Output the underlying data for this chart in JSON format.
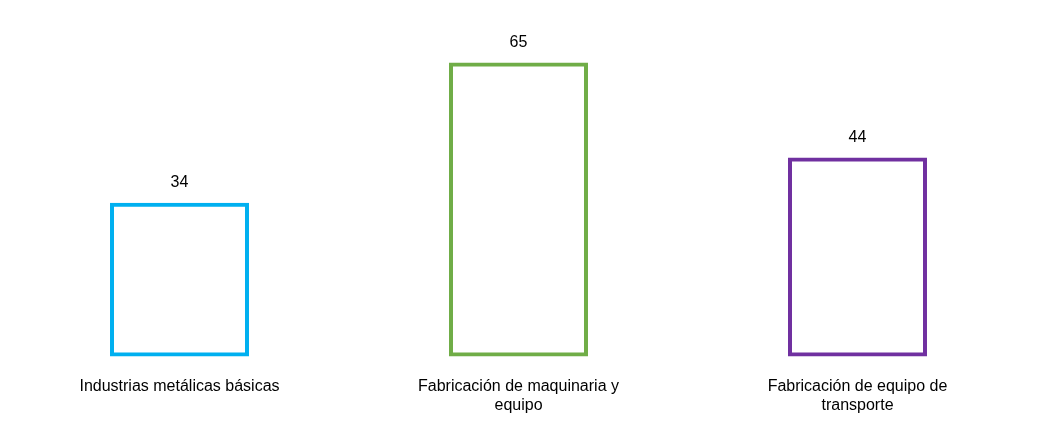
{
  "chart_data": {
    "type": "bar",
    "categories": [
      "Industrias metálicas básicas",
      "Fabricación de maquinaria y equipo",
      "Fabricación de equipo de transporte"
    ],
    "values": [
      34,
      65,
      44
    ],
    "colors": [
      "#00b0f0",
      "#70ad47",
      "#7030a0"
    ],
    "data_labels": true,
    "grid": false,
    "legend": false
  }
}
